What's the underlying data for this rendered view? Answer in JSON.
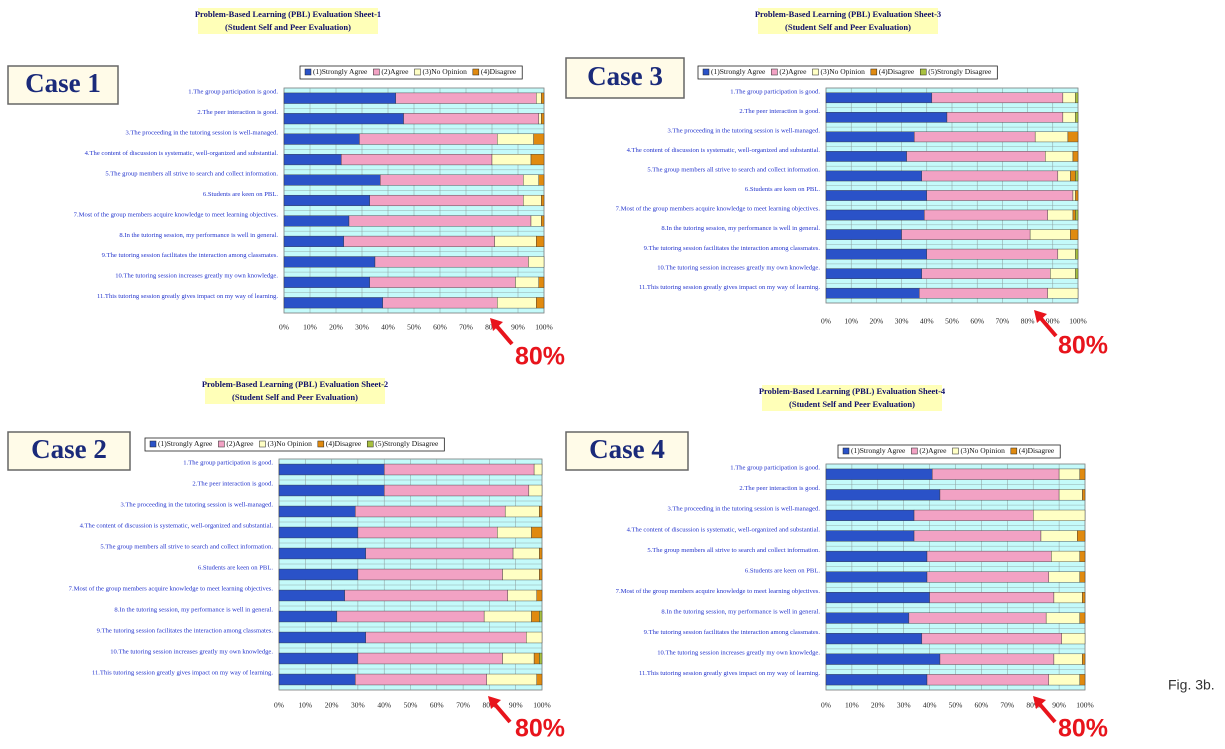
{
  "figure_label": "Fig. 3b.",
  "chart_data": [
    {
      "type": "bar",
      "orientation": "horizontal",
      "stacked": true,
      "title": "Problem-Based Learning (PBL) Evaluation Sheet-1",
      "subtitle": "(Student Self and Peer Evaluation)",
      "case_label": "Case 1",
      "annotation": "80%",
      "categories": [
        "1.The group participation is good.",
        "2.The peer interaction is good.",
        "3.The proceeding in the tutoring session is well-managed.",
        "4.The content of discussion is systematic, well-organized and substantial.",
        "5.The group members all strive to search and collect information.",
        "6.Students are keen on PBL.",
        "7.Most of the group members acquire knowledge to meet learning objectives.",
        "8.In the tutoring session, my performance is well in general.",
        "9.The tutoring session facilitates the interaction among classmates.",
        "10.The tutoring session increases greatly my own knowledge.",
        "11.This tutoring session greatly gives impact on my way of learning."
      ],
      "series": [
        {
          "name": "(1)Strongly Agree",
          "color": "#2a52c8",
          "values": [
            43,
            46,
            29,
            22,
            37,
            33,
            25,
            23,
            35,
            33,
            38
          ]
        },
        {
          "name": "(2)Agree",
          "color": "#f2a2c4",
          "values": [
            54,
            52,
            53,
            58,
            55,
            59,
            70,
            58,
            59,
            56,
            44
          ]
        },
        {
          "name": "(3)No Opinion",
          "color": "#ffffc4",
          "values": [
            2,
            1,
            14,
            15,
            6,
            7,
            4,
            16,
            6,
            9,
            15
          ]
        },
        {
          "name": "(4)Disagree",
          "color": "#e08a10",
          "values": [
            1,
            1,
            4,
            5,
            2,
            1,
            1,
            3,
            0,
            2,
            3
          ]
        }
      ],
      "xlim": [
        0,
        100
      ],
      "xticks": [
        {
          "value": 0,
          "label": "0%"
        },
        {
          "value": 10,
          "label": "10%"
        },
        {
          "value": 20,
          "label": "20%"
        },
        {
          "value": 30,
          "label": "30%"
        },
        {
          "value": 40,
          "label": "40%"
        },
        {
          "value": 50,
          "label": "50%"
        },
        {
          "value": 60,
          "label": "60%"
        },
        {
          "value": 70,
          "label": "70%"
        },
        {
          "value": 80,
          "label": "80%"
        },
        {
          "value": 90,
          "label": "90%"
        },
        {
          "value": 100,
          "label": "100%"
        }
      ],
      "grid": true
    },
    {
      "type": "bar",
      "orientation": "horizontal",
      "stacked": true,
      "title": "Problem-Based Learning (PBL) Evaluation Sheet-3",
      "subtitle": "(Student Self and Peer Evaluation)",
      "case_label": "Case 3",
      "annotation": "80%",
      "categories": [
        "1.The group participation is good.",
        "2.The peer interaction is good.",
        "3.The proceeding in the tutoring session is well-managed.",
        "4.The content of discussion is systematic, well-organized and substantial.",
        "5.The group members all strive to search and collect information.",
        "6.Students are keen on PBL.",
        "7.Most of the group members acquire knowledge to meet learning objectives.",
        "8.In the tutoring session, my performance is well in general.",
        "9.The tutoring session facilitates the interaction among classmates.",
        "10.The tutoring session increases greatly my own knowledge.",
        "11.This tutoring session greatly gives impact on my way of learning."
      ],
      "series": [
        {
          "name": "(1)Strongly Agree",
          "color": "#2a52c8",
          "values": [
            42,
            48,
            35,
            32,
            38,
            40,
            39,
            30,
            40,
            38,
            37
          ]
        },
        {
          "name": "(2)Agree",
          "color": "#f2a2c4",
          "values": [
            52,
            46,
            48,
            55,
            54,
            58,
            49,
            51,
            52,
            51,
            51
          ]
        },
        {
          "name": "(3)No Opinion",
          "color": "#ffffc4",
          "values": [
            5,
            5,
            13,
            11,
            5,
            1,
            10,
            16,
            7,
            10,
            12
          ]
        },
        {
          "name": "(4)Disagree",
          "color": "#e08a10",
          "values": [
            0,
            0,
            4,
            2,
            2,
            1,
            1,
            3,
            0,
            0,
            0
          ]
        },
        {
          "name": "(5)Strongly Disagree",
          "color": "#a8c040",
          "values": [
            1,
            1,
            0,
            0,
            1,
            0,
            1,
            0,
            1,
            1,
            0
          ]
        }
      ],
      "xlim": [
        0,
        100
      ],
      "xticks": [
        {
          "value": 0,
          "label": "0%"
        },
        {
          "value": 10,
          "label": "10%"
        },
        {
          "value": 20,
          "label": "20%"
        },
        {
          "value": 30,
          "label": "30%"
        },
        {
          "value": 40,
          "label": "40%"
        },
        {
          "value": 50,
          "label": "50%"
        },
        {
          "value": 60,
          "label": "60%"
        },
        {
          "value": 70,
          "label": "70%"
        },
        {
          "value": 80,
          "label": "80%"
        },
        {
          "value": 90,
          "label": "90%"
        },
        {
          "value": 100,
          "label": "100%"
        }
      ],
      "grid": true
    },
    {
      "type": "bar",
      "orientation": "horizontal",
      "stacked": true,
      "title": "Problem-Based Learning (PBL) Evaluation Sheet-2",
      "subtitle": "(Student Self and Peer Evaluation)",
      "case_label": "Case 2",
      "annotation": "80%",
      "categories": [
        "1.The group participation is good.",
        "2.The peer interaction is good.",
        "3.The proceeding in the tutoring session is well-managed.",
        "4.The content of discussion is systematic, well-organized and substantial.",
        "5.The group members all strive to search and collect information.",
        "6.Students are keen on PBL.",
        "7.Most of the group members acquire knowledge to meet learning objectives.",
        "8.In the tutoring session, my performance is well in general.",
        "9.The tutoring session facilitates the interaction among classmates.",
        "10.The tutoring session increases greatly my own knowledge.",
        "11.This tutoring session greatly gives impact on my way of learning."
      ],
      "series": [
        {
          "name": "(1)Strongly Agree",
          "color": "#2a52c8",
          "values": [
            40,
            40,
            29,
            30,
            33,
            30,
            25,
            22,
            33,
            30,
            29
          ]
        },
        {
          "name": "(2)Agree",
          "color": "#f2a2c4",
          "values": [
            57,
            55,
            57,
            53,
            56,
            55,
            62,
            56,
            61,
            55,
            50
          ]
        },
        {
          "name": "(3)No Opinion",
          "color": "#ffffc4",
          "values": [
            3,
            5,
            13,
            13,
            10,
            14,
            11,
            18,
            6,
            12,
            19
          ]
        },
        {
          "name": "(4)Disagree",
          "color": "#e08a10",
          "values": [
            0,
            0,
            1,
            4,
            1,
            1,
            2,
            3,
            0,
            2,
            2
          ]
        },
        {
          "name": "(5)Strongly Disagree",
          "color": "#a8c040",
          "values": [
            0,
            0,
            0,
            0,
            0,
            0,
            0,
            1,
            0,
            1,
            0
          ]
        }
      ],
      "xlim": [
        0,
        100
      ],
      "xticks": [
        {
          "value": 0,
          "label": "0%"
        },
        {
          "value": 10,
          "label": "10%"
        },
        {
          "value": 20,
          "label": "20%"
        },
        {
          "value": 30,
          "label": "30%"
        },
        {
          "value": 40,
          "label": "40%"
        },
        {
          "value": 50,
          "label": "50%"
        },
        {
          "value": 60,
          "label": "60%"
        },
        {
          "value": 70,
          "label": "70%"
        },
        {
          "value": 80,
          "label": "80%"
        },
        {
          "value": 90,
          "label": "90%"
        },
        {
          "value": 100,
          "label": "100%"
        }
      ],
      "grid": true
    },
    {
      "type": "bar",
      "orientation": "horizontal",
      "stacked": true,
      "title": "Problem-Based Learning (PBL) Evaluation Sheet-4",
      "subtitle": "(Student Self and Peer Evaluation)",
      "case_label": "Case 4",
      "annotation": "80%",
      "categories": [
        "1.The group participation is good.",
        "2.The peer interaction is good.",
        "3.The proceeding in the tutoring session is well-managed.",
        "4.The content of discussion is systematic, well-organized and substantial.",
        "5.The group members all strive to search and collect information.",
        "6.Students are keen on PBL.",
        "7.Most of the group members acquire knowledge to meet learning objectives.",
        "8.In the tutoring session, my performance is well in general.",
        "9.The tutoring session facilitates the interaction among classmates.",
        "10.The tutoring session increases greatly my own knowledge.",
        "11.This tutoring session greatly gives impact on my way of learning."
      ],
      "series": [
        {
          "name": "(1)Strongly Agree",
          "color": "#2a52c8",
          "values": [
            41,
            44,
            34,
            34,
            39,
            39,
            40,
            32,
            37,
            44,
            39
          ]
        },
        {
          "name": "(2)Agree",
          "color": "#f2a2c4",
          "values": [
            49,
            46,
            46,
            49,
            48,
            47,
            48,
            53,
            54,
            44,
            47
          ]
        },
        {
          "name": "(3)No Opinion",
          "color": "#ffffc4",
          "values": [
            8,
            9,
            20,
            14,
            11,
            12,
            11,
            13,
            9,
            11,
            12
          ]
        },
        {
          "name": "(4)Disagree",
          "color": "#e08a10",
          "values": [
            2,
            1,
            0,
            3,
            2,
            2,
            1,
            2,
            0,
            1,
            2
          ]
        }
      ],
      "xlim": [
        0,
        100
      ],
      "xticks": [
        {
          "value": 0,
          "label": "0%"
        },
        {
          "value": 10,
          "label": "10%"
        },
        {
          "value": 20,
          "label": "20%"
        },
        {
          "value": 30,
          "label": "30%"
        },
        {
          "value": 40,
          "label": "40%"
        },
        {
          "value": 50,
          "label": "50%"
        },
        {
          "value": 60,
          "label": "60%"
        },
        {
          "value": 70,
          "label": "70%"
        },
        {
          "value": 80,
          "label": "80%"
        },
        {
          "value": 90,
          "label": "90%"
        },
        {
          "value": 100,
          "label": "100%"
        }
      ],
      "grid": true
    }
  ]
}
